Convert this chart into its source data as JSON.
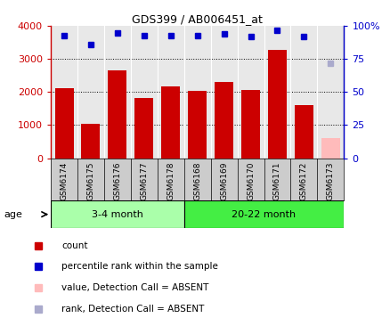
{
  "title": "GDS399 / AB006451_at",
  "samples": [
    "GSM6174",
    "GSM6175",
    "GSM6176",
    "GSM6177",
    "GSM6178",
    "GSM6168",
    "GSM6169",
    "GSM6170",
    "GSM6171",
    "GSM6172",
    "GSM6173"
  ],
  "counts": [
    2130,
    1050,
    2660,
    1820,
    2160,
    2050,
    2300,
    2060,
    3280,
    1600,
    620
  ],
  "absent_flags": [
    false,
    false,
    false,
    false,
    false,
    false,
    false,
    false,
    false,
    false,
    true
  ],
  "percentile_ranks": [
    93,
    86,
    95,
    93,
    93,
    93,
    94,
    92,
    97,
    92,
    72
  ],
  "groups": [
    {
      "label": "3-4 month",
      "start": 0,
      "end": 5,
      "color": "#aaffaa"
    },
    {
      "label": "20-22 month",
      "start": 5,
      "end": 11,
      "color": "#44ee44"
    }
  ],
  "bar_color": "#cc0000",
  "absent_bar_color": "#ffbbbb",
  "dot_color": "#0000cc",
  "absent_dot_color": "#aaaacc",
  "ylim_left": [
    0,
    4000
  ],
  "ylim_right": [
    0,
    100
  ],
  "yticks_left": [
    0,
    1000,
    2000,
    3000,
    4000
  ],
  "ytick_labels_left": [
    "0",
    "1000",
    "2000",
    "3000",
    "4000"
  ],
  "yticks_right": [
    0,
    25,
    50,
    75,
    100
  ],
  "ytick_labels_right": [
    "0",
    "25",
    "50",
    "75",
    "100%"
  ],
  "grid_values": [
    1000,
    2000,
    3000
  ],
  "plot_bg_color": "#e8e8e8",
  "label_bg_color": "#cccccc",
  "legend_items": [
    {
      "color": "#cc0000",
      "label": "count"
    },
    {
      "color": "#0000cc",
      "label": "percentile rank within the sample"
    },
    {
      "color": "#ffbbbb",
      "label": "value, Detection Call = ABSENT"
    },
    {
      "color": "#aaaacc",
      "label": "rank, Detection Call = ABSENT"
    }
  ]
}
